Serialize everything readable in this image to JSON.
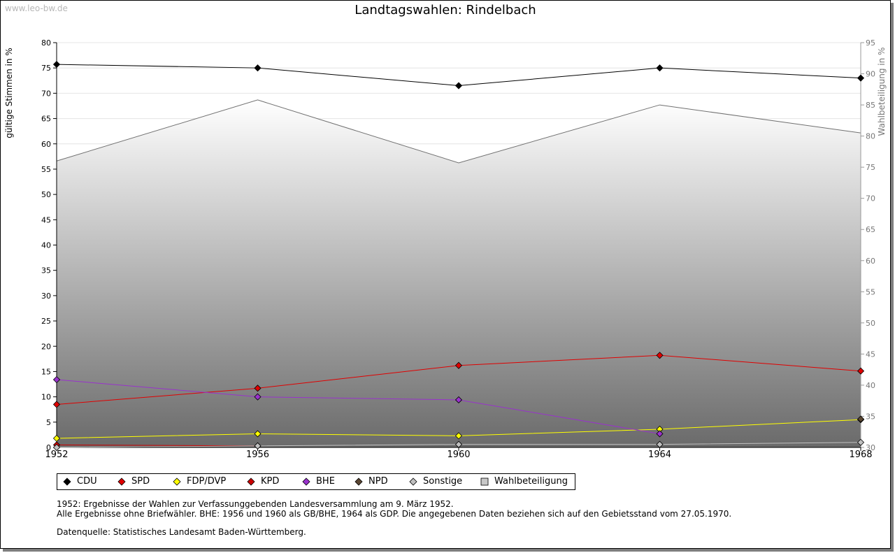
{
  "watermark": "www.leo-bw.de",
  "notes": {
    "line1": "1952: Ergebnisse der Wahlen zur Verfassunggebenden Landesversammlung am 9. März 1952.",
    "line2": "Alle Ergebnisse ohne Briefwähler. BHE: 1956 und 1960 als GB/BHE, 1964 als GDP. Die angegebenen Daten beziehen sich auf den Gebietsstand vom 27.05.1970.",
    "source": "Datenquelle: Statistisches Landesamt Baden-Württemberg."
  },
  "chart_data": {
    "type": "line",
    "title": "Landtagswahlen: Rindelbach",
    "ylabel": "gültige Stimmen in %",
    "y2label": "Wahlbeteiligung in %",
    "xlabel": "",
    "x": [
      1952,
      1956,
      1960,
      1964,
      1968
    ],
    "xticks": [
      "1952",
      "1956",
      "1960",
      "1964",
      "1968"
    ],
    "ylim": [
      0,
      80
    ],
    "yticks": [
      "0",
      "5",
      "10",
      "15",
      "20",
      "25",
      "30",
      "35",
      "40",
      "45",
      "50",
      "55",
      "60",
      "65",
      "70",
      "75",
      "80"
    ],
    "y2lim": [
      30,
      95
    ],
    "y2ticks": [
      "30",
      "35",
      "40",
      "45",
      "50",
      "55",
      "60",
      "65",
      "70",
      "75",
      "80",
      "85",
      "90",
      "95"
    ],
    "grid": true,
    "legend_position": "bottom",
    "series": [
      {
        "name": "CDU",
        "color": "#000000",
        "values": [
          75.7,
          75.0,
          71.5,
          75.0,
          73.0
        ]
      },
      {
        "name": "SPD",
        "color": "#e00000",
        "values": [
          8.5,
          11.7,
          16.2,
          18.2,
          15.1
        ]
      },
      {
        "name": "FDP/DVP",
        "color": "#ffff00",
        "values": [
          1.8,
          2.7,
          2.3,
          3.6,
          5.5
        ]
      },
      {
        "name": "KPD",
        "color": "#cc0000",
        "values": [
          0.5,
          0.3,
          null,
          null,
          null
        ]
      },
      {
        "name": "BHE",
        "color": "#9932cc",
        "values": [
          13.4,
          10.0,
          9.4,
          2.7,
          null
        ]
      },
      {
        "name": "NPD",
        "color": "#5a4632",
        "values": [
          null,
          null,
          null,
          null,
          5.6
        ]
      },
      {
        "name": "Sonstige",
        "color": "#c0c0c0",
        "values": [
          0.0,
          0.3,
          0.6,
          0.6,
          1.0
        ]
      }
    ],
    "turnout": {
      "name": "Wahlbeteiligung",
      "color": "#c8c8c8",
      "axis": "right",
      "values": [
        76.0,
        85.8,
        75.7,
        85.0,
        80.5
      ]
    }
  }
}
